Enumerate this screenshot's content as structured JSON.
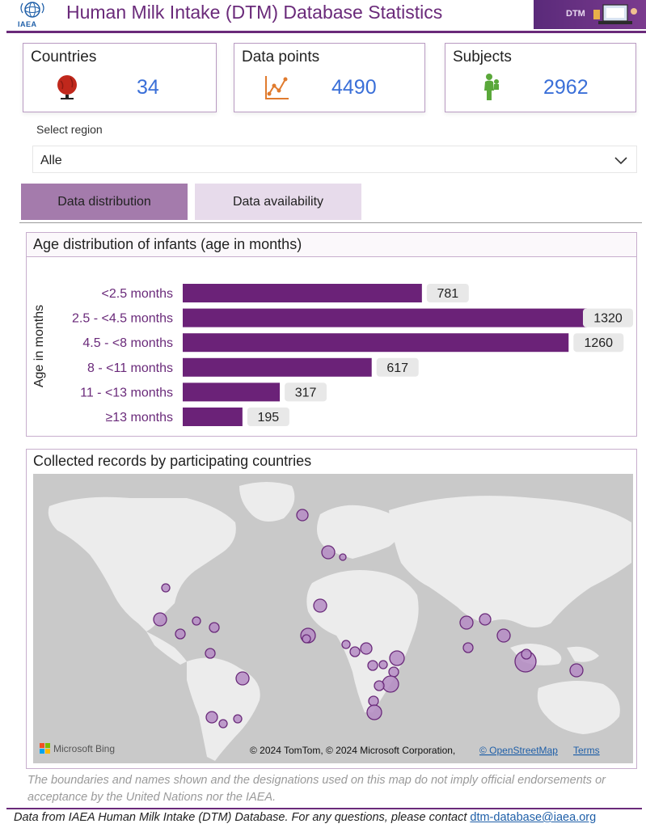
{
  "header": {
    "logo_text": "IAEA",
    "title": "Human Milk Intake (DTM) Database Statistics",
    "banner_text": "DTM"
  },
  "kpis": [
    {
      "label": "Countries",
      "value": "34",
      "icon": "globe-icon",
      "icon_color": "#c0281c"
    },
    {
      "label": "Data points",
      "value": "4490",
      "icon": "line-chart-icon",
      "icon_color": "#e07b2e"
    },
    {
      "label": "Subjects",
      "value": "2962",
      "icon": "mother-child-icon",
      "icon_color": "#5aa83a"
    }
  ],
  "region_select": {
    "label": "Select region",
    "value": "Alle"
  },
  "tabs": [
    {
      "label": "Data distribution",
      "active": true
    },
    {
      "label": "Data availability",
      "active": false
    }
  ],
  "age_panel": {
    "title": "Age distribution of infants (age in months)"
  },
  "chart_data": {
    "type": "bar",
    "orientation": "horizontal",
    "ylabel": "Age in months",
    "categories": [
      "<2.5 months",
      "2.5 - <4.5 months",
      "4.5 - <8 months",
      "8 - <11 months",
      "11 - <13 months",
      "≥13 months"
    ],
    "values": [
      781,
      1320,
      1260,
      617,
      317,
      195
    ],
    "data_labels": [
      "781",
      "1320",
      "1260",
      "617",
      "317",
      "195"
    ],
    "bar_color": "#6b2278",
    "label_bg": "#e8e8e8",
    "xlim": [
      0,
      1320
    ]
  },
  "map_panel": {
    "title": "Collected records by participating countries",
    "bing_label": "Microsoft Bing",
    "attribution": "© 2024 TomTom, © 2024 Microsoft Corporation,",
    "osm_link": "© OpenStreetMap",
    "terms_link": "Terms",
    "bubble_color": "#b58cc4",
    "bubble_stroke": "#6a2a7a"
  },
  "disclaimer": "The boundaries and names shown and the designations used on this map do not imply official endorsements or acceptance by the United Nations nor the IAEA.",
  "footer": {
    "text": "Data from IAEA Human Milk Intake (DTM) Database. For any questions, please contact ",
    "email": "dtm-database@iaea.org"
  }
}
